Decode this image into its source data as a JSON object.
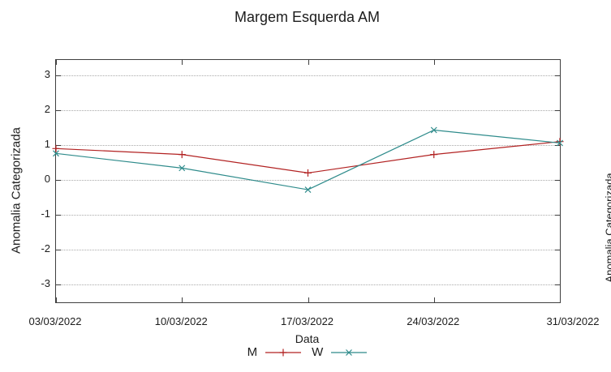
{
  "title": "Margem Esquerda AM",
  "axes": {
    "x_label": "Data",
    "y_label": "Anomalia Categorizada",
    "x_tick_labels": [
      "03/03/2022",
      "10/03/2022",
      "17/03/2022",
      "24/03/2022",
      "31/03/2022"
    ],
    "y_tick_labels": [
      "3",
      "2",
      "1",
      "0",
      "-1",
      "-2",
      "-3"
    ]
  },
  "adjacent_chart_fragment": {
    "y_label": "Anomalia Categorizada"
  },
  "colors": {
    "series_m": "#b22222",
    "series_w": "#2e8b8b",
    "grid": "#a9a9a9",
    "border": "#3f3f3f",
    "text": "#1c1c1c"
  },
  "chart_data": {
    "type": "line",
    "title": "Margem Esquerda AM",
    "xlabel": "Data",
    "ylabel": "Anomalia Categorizada",
    "categories": [
      "03/03/2022",
      "10/03/2022",
      "17/03/2022",
      "24/03/2022",
      "31/03/2022"
    ],
    "series": [
      {
        "name": "M",
        "color": "#b22222",
        "marker": "plus",
        "values": [
          0.9,
          0.73,
          0.2,
          0.73,
          1.1
        ]
      },
      {
        "name": "W",
        "color": "#2e8b8b",
        "marker": "cross",
        "values": [
          0.76,
          0.34,
          -0.28,
          1.43,
          1.06
        ]
      }
    ],
    "ylim": [
      -3.5,
      3.5
    ],
    "grid": "horizontal-dotted",
    "legend_position": "bottom-center"
  }
}
